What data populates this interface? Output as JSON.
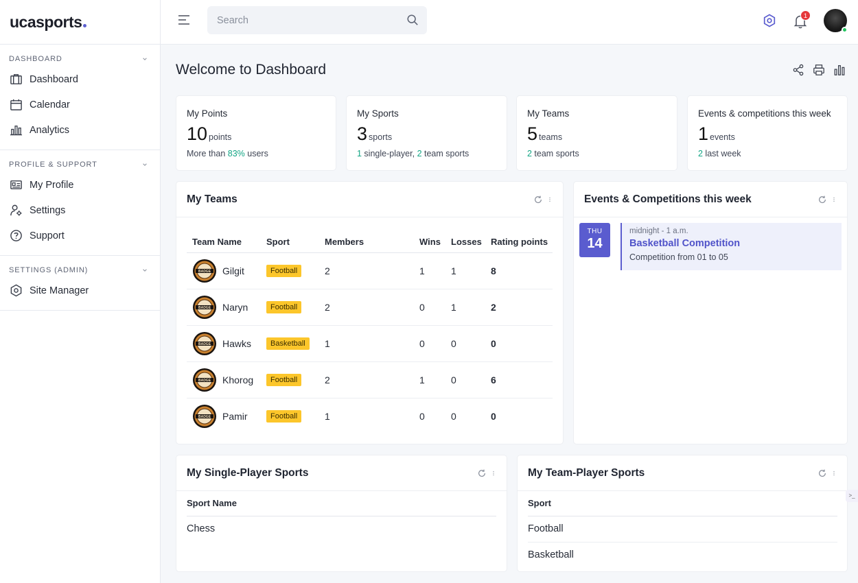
{
  "brand": "ucasports",
  "sidebar": {
    "sections": [
      {
        "title": "DASHBOARD",
        "items": [
          {
            "label": "Dashboard",
            "icon": "briefcase-icon"
          },
          {
            "label": "Calendar",
            "icon": "calendar-icon"
          },
          {
            "label": "Analytics",
            "icon": "bar-chart-icon"
          }
        ]
      },
      {
        "title": "PROFILE & SUPPORT",
        "items": [
          {
            "label": "My Profile",
            "icon": "id-card-icon"
          },
          {
            "label": "Settings",
            "icon": "user-gear-icon"
          },
          {
            "label": "Support",
            "icon": "help-circle-icon"
          }
        ]
      },
      {
        "title": "SETTINGS (ADMIN)",
        "items": [
          {
            "label": "Site Manager",
            "icon": "hexagon-gear-icon"
          }
        ]
      }
    ]
  },
  "header": {
    "search_placeholder": "Search",
    "notification_count": "1",
    "accent_color": "#5a5ccf"
  },
  "page": {
    "title": "Welcome to Dashboard"
  },
  "stats": [
    {
      "label": "My Points",
      "value": "10",
      "unit": "points",
      "sub_prefix": "More than ",
      "sub_highlight": "83%",
      "sub_suffix": " users"
    },
    {
      "label": "My Sports",
      "value": "3",
      "unit": "sports",
      "sub_a": "1",
      "sub_b": " single-player, ",
      "sub_c": "2",
      "sub_d": " team sports"
    },
    {
      "label": "My Teams",
      "value": "5",
      "unit": "teams",
      "sub_highlight": "2",
      "sub_suffix": " team sports"
    },
    {
      "label": "Events & competitions this week",
      "value": "1",
      "unit": "events",
      "sub_highlight": "2",
      "sub_suffix": " last week"
    }
  ],
  "teams_panel": {
    "title": "My Teams",
    "columns": [
      "Team Name",
      "Sport",
      "Members",
      "Wins",
      "Losses",
      "Rating points"
    ],
    "rows": [
      {
        "name": "Gilgit",
        "sport": "Football",
        "members": "2",
        "wins": "1",
        "losses": "1",
        "rating": "8"
      },
      {
        "name": "Naryn",
        "sport": "Football",
        "members": "2",
        "wins": "0",
        "losses": "1",
        "rating": "2"
      },
      {
        "name": "Hawks",
        "sport": "Basketball",
        "members": "1",
        "wins": "0",
        "losses": "0",
        "rating": "0"
      },
      {
        "name": "Khorog",
        "sport": "Football",
        "members": "2",
        "wins": "1",
        "losses": "0",
        "rating": "6"
      },
      {
        "name": "Pamir",
        "sport": "Football",
        "members": "1",
        "wins": "0",
        "losses": "0",
        "rating": "0"
      }
    ],
    "logo_text": "BADGE"
  },
  "events_panel": {
    "title": "Events & Competitions this week",
    "event": {
      "dow": "THU",
      "day": "14",
      "time": "midnight - 1 a.m.",
      "name": "Basketball Competition",
      "desc": "Competition from 01 to 05"
    }
  },
  "single_panel": {
    "title": "My Single-Player Sports",
    "column": "Sport Name",
    "rows": [
      "Chess"
    ]
  },
  "team_panel": {
    "title": "My Team-Player Sports",
    "column": "Sport",
    "rows": [
      "Football",
      "Basketball"
    ]
  }
}
